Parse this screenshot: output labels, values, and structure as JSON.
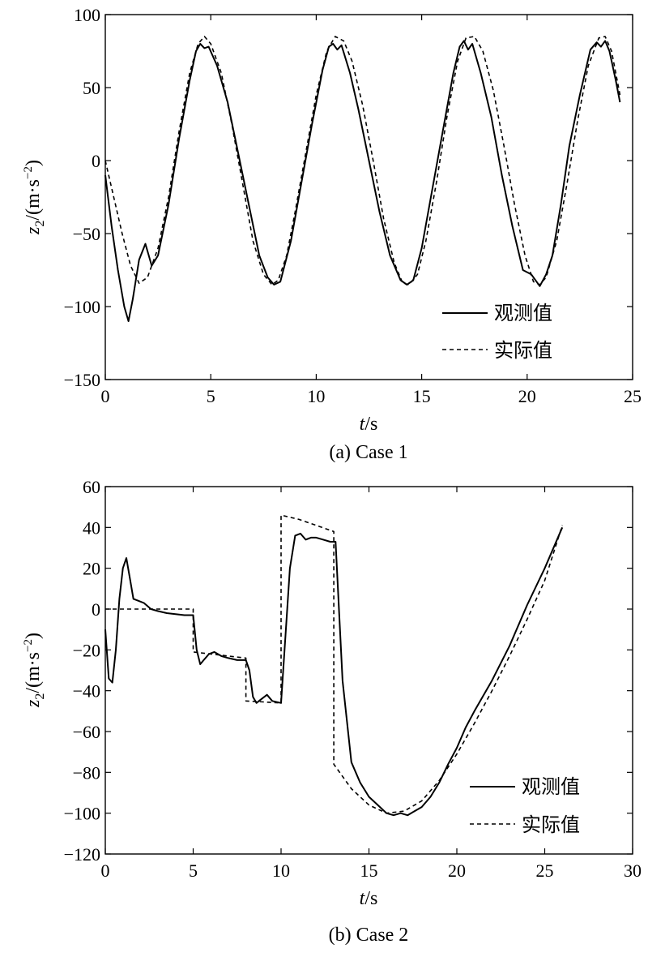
{
  "chart_data": [
    {
      "type": "line",
      "caption": "(a) Case 1",
      "xlabel_var": "t",
      "xlabel_unit": "/s",
      "ylabel_var": "z",
      "ylabel_sub": "2",
      "ylabel_unit": "/(m·s",
      "ylabel_exp": "−2",
      "ylabel_close": ")",
      "xlim": [
        0,
        25
      ],
      "ylim": [
        -150,
        100
      ],
      "xticks": [
        0,
        5,
        10,
        15,
        20,
        25
      ],
      "yticks": [
        100,
        50,
        0,
        -50,
        -100,
        -150
      ],
      "xtick_labels": [
        "0",
        "5",
        "10",
        "15",
        "20",
        "25"
      ],
      "ytick_labels": [
        "100",
        "50",
        "0",
        "−50",
        "−100",
        "−150"
      ],
      "legend": {
        "placement": "bottom-right",
        "entries": [
          "观测值",
          "实际值"
        ]
      },
      "series": [
        {
          "name": "观测值",
          "style": "solid",
          "x": [
            0,
            0.3,
            0.6,
            0.9,
            1.1,
            1.3,
            1.6,
            1.9,
            2.2,
            2.5,
            3.0,
            3.5,
            4.0,
            4.3,
            4.5,
            4.7,
            4.9,
            5.3,
            5.8,
            6.3,
            6.8,
            7.3,
            7.7,
            8.0,
            8.3,
            8.8,
            9.3,
            9.8,
            10.3,
            10.6,
            10.8,
            11.0,
            11.2,
            11.6,
            12.0,
            12.5,
            13.0,
            13.5,
            14.0,
            14.3,
            14.6,
            15.0,
            15.5,
            16.0,
            16.5,
            16.8,
            17.0,
            17.2,
            17.4,
            17.8,
            18.3,
            18.8,
            19.3,
            19.8,
            20.2,
            20.6,
            20.9,
            21.2,
            21.6,
            22.0,
            22.5,
            23.0,
            23.3,
            23.5,
            23.7,
            23.9,
            24.2,
            24.4
          ],
          "y": [
            -10,
            -45,
            -75,
            -100,
            -110,
            -95,
            -68,
            -57,
            -72,
            -65,
            -30,
            15,
            55,
            75,
            80,
            77,
            78,
            65,
            40,
            5,
            -30,
            -65,
            -80,
            -85,
            -83,
            -55,
            -15,
            25,
            62,
            78,
            80,
            76,
            79,
            60,
            35,
            0,
            -35,
            -65,
            -82,
            -85,
            -82,
            -60,
            -20,
            20,
            60,
            78,
            82,
            76,
            80,
            60,
            30,
            -10,
            -45,
            -75,
            -78,
            -86,
            -78,
            -65,
            -30,
            10,
            45,
            76,
            81,
            78,
            82,
            75,
            55,
            40
          ]
        },
        {
          "name": "实际值",
          "style": "dashed",
          "x": [
            0,
            0.4,
            0.8,
            1.2,
            1.6,
            2.0,
            2.5,
            3.0,
            3.5,
            4.0,
            4.4,
            4.7,
            5.0,
            5.5,
            6.0,
            6.5,
            7.0,
            7.5,
            7.9,
            8.2,
            8.6,
            9.0,
            9.5,
            10.0,
            10.5,
            10.9,
            11.3,
            11.7,
            12.2,
            12.7,
            13.2,
            13.7,
            14.1,
            14.4,
            14.8,
            15.2,
            15.7,
            16.2,
            16.7,
            17.1,
            17.5,
            17.9,
            18.4,
            18.9,
            19.4,
            19.9,
            20.3,
            20.6,
            20.9,
            21.4,
            21.9,
            22.4,
            22.9,
            23.4,
            23.7,
            24.0,
            24.4
          ],
          "y": [
            0,
            -25,
            -50,
            -72,
            -84,
            -80,
            -60,
            -25,
            20,
            60,
            80,
            85,
            80,
            60,
            25,
            -15,
            -55,
            -78,
            -85,
            -82,
            -65,
            -35,
            5,
            45,
            75,
            85,
            82,
            68,
            38,
            0,
            -40,
            -70,
            -84,
            -85,
            -78,
            -55,
            -15,
            30,
            68,
            84,
            85,
            75,
            48,
            10,
            -30,
            -65,
            -83,
            -85,
            -80,
            -55,
            -15,
            28,
            65,
            84,
            85,
            75,
            45
          ]
        }
      ]
    },
    {
      "type": "line",
      "caption": "(b) Case 2",
      "xlabel_var": "t",
      "xlabel_unit": "/s",
      "ylabel_var": "z",
      "ylabel_sub": "2",
      "ylabel_unit": "/(m·s",
      "ylabel_exp": "−2",
      "ylabel_close": ")",
      "xlim": [
        0,
        30
      ],
      "ylim": [
        -120,
        60
      ],
      "xticks": [
        0,
        5,
        10,
        15,
        20,
        25,
        30
      ],
      "yticks": [
        60,
        40,
        20,
        0,
        -20,
        -40,
        -60,
        -80,
        -100,
        -120
      ],
      "xtick_labels": [
        "0",
        "5",
        "10",
        "15",
        "20",
        "25",
        "30"
      ],
      "ytick_labels": [
        "60",
        "40",
        "20",
        "0",
        "−20",
        "−40",
        "−60",
        "−80",
        "−100",
        "−120"
      ],
      "legend": {
        "placement": "bottom-right",
        "entries": [
          "观测值",
          "实际值"
        ]
      },
      "series": [
        {
          "name": "观测值",
          "style": "solid",
          "x": [
            0,
            0.2,
            0.4,
            0.6,
            0.8,
            1.0,
            1.2,
            1.4,
            1.6,
            1.9,
            2.2,
            2.6,
            3.0,
            3.5,
            4.0,
            4.5,
            5.0,
            5.2,
            5.4,
            5.6,
            5.9,
            6.2,
            6.6,
            7.0,
            7.5,
            8.0,
            8.2,
            8.4,
            8.6,
            8.9,
            9.2,
            9.5,
            10.0,
            10.2,
            10.5,
            10.8,
            11.1,
            11.4,
            11.7,
            12.0,
            12.4,
            12.8,
            13.1,
            13.5,
            14.0,
            14.5,
            15.0,
            15.5,
            16.0,
            16.4,
            16.8,
            17.2,
            17.6,
            18.0,
            18.5,
            19.0,
            19.5,
            20.0,
            20.5,
            21.0,
            22.0,
            23.0,
            24.0,
            25.0,
            26.0
          ],
          "y": [
            -10,
            -34,
            -36,
            -20,
            5,
            20,
            25,
            15,
            5,
            4,
            3,
            0,
            -1,
            -2,
            -2.5,
            -3,
            -3,
            -20,
            -27,
            -25,
            -22,
            -21,
            -23,
            -24,
            -25,
            -25,
            -30,
            -43,
            -46,
            -44,
            -42,
            -45,
            -46,
            -20,
            20,
            36,
            37,
            34,
            35,
            35,
            34,
            33,
            33,
            -35,
            -75,
            -85,
            -92,
            -96,
            -100,
            -101,
            -100,
            -101,
            -99,
            -97,
            -92,
            -85,
            -76,
            -68,
            -58,
            -50,
            -35,
            -18,
            2,
            20,
            40
          ]
        },
        {
          "name": "实际值",
          "style": "dashed",
          "x": [
            0,
            0.5,
            1.0,
            2.0,
            3.0,
            4.0,
            5.0,
            5.0,
            6.0,
            7.0,
            8.0,
            8.0,
            9.0,
            10.0,
            10.0,
            11.0,
            12.0,
            13.0,
            13.0,
            14.0,
            15.0,
            16.0,
            17.0,
            18.0,
            19.0,
            20.0,
            21.0,
            22.0,
            23.0,
            24.0,
            25.0,
            26.0
          ],
          "y": [
            0,
            0,
            0,
            0,
            0,
            0,
            0,
            -21,
            -22,
            -23,
            -24,
            -45,
            -45.5,
            -46,
            46,
            44,
            41,
            38,
            -76,
            -88,
            -96,
            -100,
            -99,
            -94,
            -84,
            -71,
            -56,
            -40,
            -23,
            -5,
            14,
            41
          ]
        }
      ]
    }
  ]
}
